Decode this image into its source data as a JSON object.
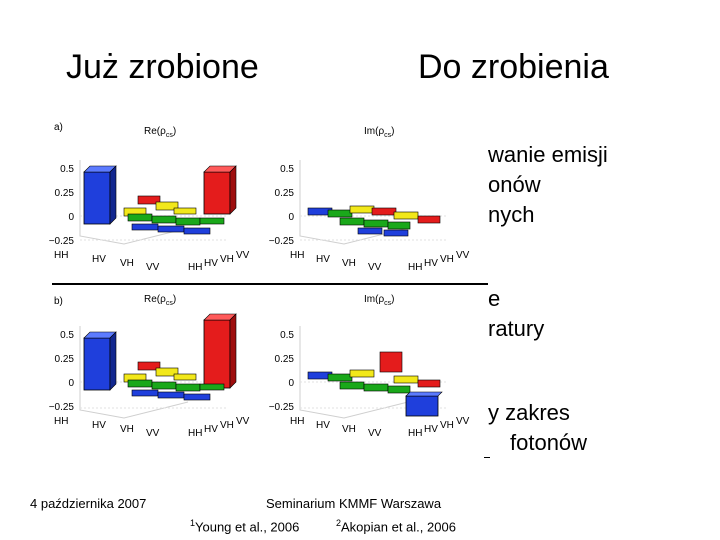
{
  "slide": {
    "heading_left": "Już zrobione",
    "heading_right": "Do zrobienia",
    "right_text_lines": [
      "wanie emisji",
      "onów",
      "nych",
      "e",
      "ratury",
      "y zakres",
      "fotonów"
    ]
  },
  "figures": {
    "a": {
      "label": "a)",
      "re_title_base": "Re(ρ",
      "re_title_sub": "cs",
      "im_title_base": "Im(ρ",
      "im_title_sub": "cs",
      "ticks": [
        "0.5",
        "0.25",
        "0",
        "−0.25"
      ],
      "axis_labels": [
        "HH",
        "HV",
        "VH",
        "VV"
      ],
      "depth_labels": [
        "HH",
        "HV",
        "VH",
        "VV"
      ]
    },
    "b": {
      "label": "b)",
      "re_title_base": "Re(ρ",
      "re_title_sub": "cs",
      "im_title_base": "Im(ρ",
      "im_title_sub": "cs",
      "ticks": [
        "0.5",
        "0.25",
        "0",
        "−0.25"
      ],
      "axis_labels": [
        "HH",
        "HV",
        "VH",
        "VV"
      ],
      "depth_labels": [
        "HH",
        "HV",
        "VH",
        "VV"
      ]
    }
  },
  "footer": {
    "date": "4 października 2007",
    "seminar": "Seminarium KMMF Warszawa",
    "ref1_num": "1",
    "ref1_text": "Young et al., 2006",
    "ref2_num": "2",
    "ref2_text": "Akopian et al., 2006"
  },
  "colors": {
    "blue": "#1f3fdc",
    "green": "#1aa81a",
    "yellow": "#f2e81a",
    "red": "#e41c1c"
  }
}
